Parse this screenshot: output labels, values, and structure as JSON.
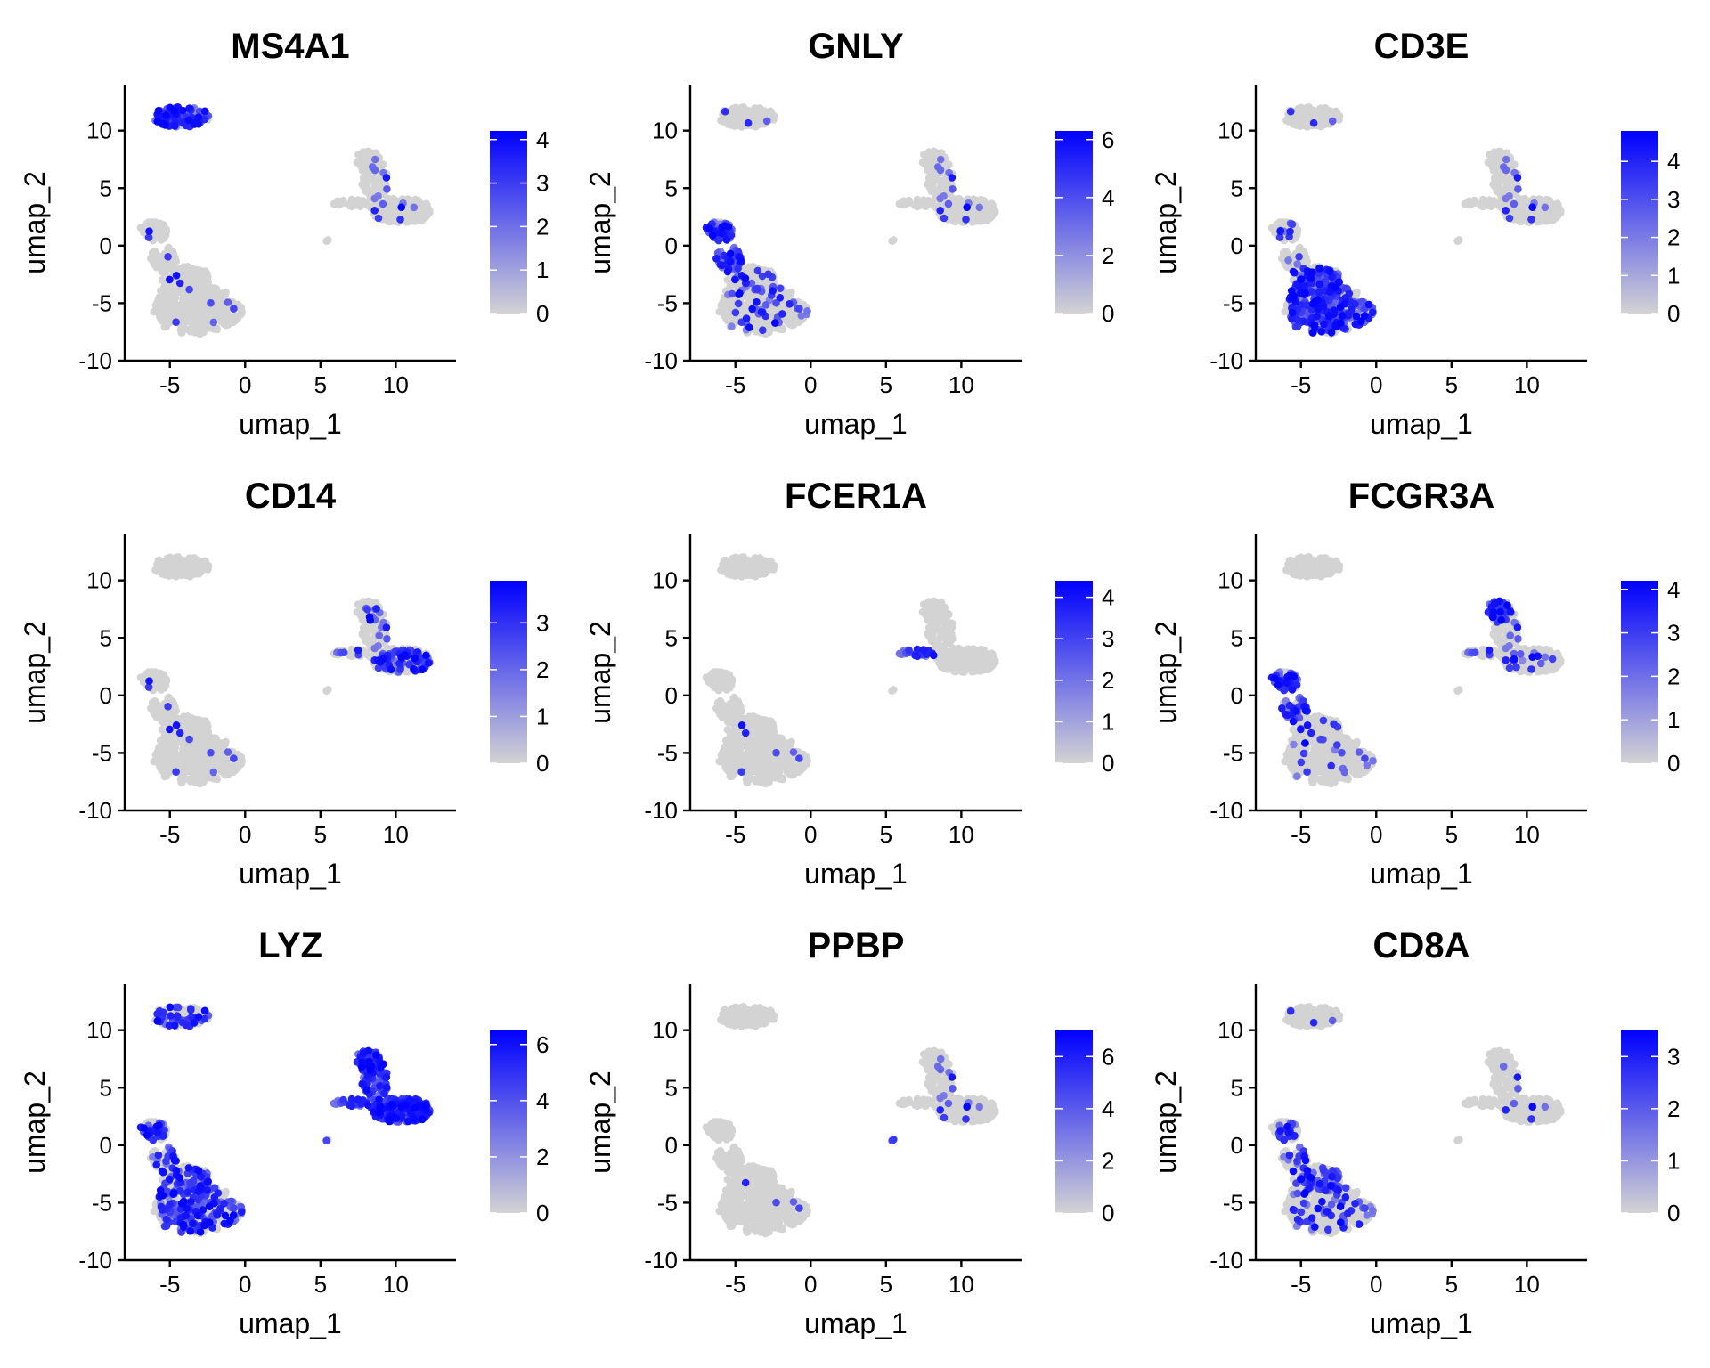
{
  "colors": {
    "low": "#d3d3d3",
    "high": "#0000ff"
  },
  "chart_data": [
    {
      "type": "scatter",
      "title": "MS4A1",
      "xlabel": "umap_1",
      "ylabel": "umap_2",
      "xlim": [
        -8,
        14
      ],
      "ylim": [
        -10,
        14
      ],
      "xticks": [
        {
          "v": -5,
          "label": "-5"
        },
        {
          "v": 0,
          "label": "0"
        },
        {
          "v": 5,
          "label": "5"
        },
        {
          "v": 10,
          "label": "10"
        }
      ],
      "yticks": [
        {
          "v": -10,
          "label": "-10"
        },
        {
          "v": -5,
          "label": "-5"
        },
        {
          "v": 0,
          "label": "0"
        },
        {
          "v": 5,
          "label": "5"
        },
        {
          "v": 10,
          "label": "10"
        }
      ],
      "colorbar": {
        "min": 0,
        "max": 4.2,
        "ticks": [
          {
            "v": 0,
            "label": "0"
          },
          {
            "v": 1,
            "label": "1"
          },
          {
            "v": 2,
            "label": "2"
          },
          {
            "v": 3,
            "label": "3"
          },
          {
            "v": 4,
            "label": "4"
          }
        ]
      },
      "expression": {
        "b": 0.88,
        "t": 0.03,
        "nk": 0.03,
        "mono": 0.04,
        "island": 0,
        "grid": 0
      }
    },
    {
      "type": "scatter",
      "title": "GNLY",
      "xlabel": "umap_1",
      "ylabel": "umap_2",
      "xlim": [
        -8,
        14
      ],
      "ylim": [
        -10,
        14
      ],
      "xticks": [
        {
          "v": -5,
          "label": "-5"
        },
        {
          "v": 0,
          "label": "0"
        },
        {
          "v": 5,
          "label": "5"
        },
        {
          "v": 10,
          "label": "10"
        }
      ],
      "yticks": [
        {
          "v": -10,
          "label": "-10"
        },
        {
          "v": -5,
          "label": "-5"
        },
        {
          "v": 0,
          "label": "0"
        },
        {
          "v": 5,
          "label": "5"
        },
        {
          "v": 10,
          "label": "10"
        }
      ],
      "colorbar": {
        "min": 0,
        "max": 6.3,
        "ticks": [
          {
            "v": 0,
            "label": "0"
          },
          {
            "v": 2,
            "label": "2"
          },
          {
            "v": 4,
            "label": "4"
          },
          {
            "v": 6,
            "label": "6"
          }
        ]
      },
      "expression": {
        "b": 0.03,
        "t": 0.12,
        "nk": 0.9,
        "mono": 0.04,
        "island": 0,
        "grid": 0
      }
    },
    {
      "type": "scatter",
      "title": "CD3E",
      "xlabel": "umap_1",
      "ylabel": "umap_2",
      "xlim": [
        -8,
        14
      ],
      "ylim": [
        -10,
        14
      ],
      "xticks": [
        {
          "v": -5,
          "label": "-5"
        },
        {
          "v": 0,
          "label": "0"
        },
        {
          "v": 5,
          "label": "5"
        },
        {
          "v": 10,
          "label": "10"
        }
      ],
      "yticks": [
        {
          "v": -10,
          "label": "-10"
        },
        {
          "v": -5,
          "label": "-5"
        },
        {
          "v": 0,
          "label": "0"
        },
        {
          "v": 5,
          "label": "5"
        },
        {
          "v": 10,
          "label": "10"
        }
      ],
      "colorbar": {
        "min": 0,
        "max": 4.8,
        "ticks": [
          {
            "v": 0,
            "label": "0"
          },
          {
            "v": 1,
            "label": "1"
          },
          {
            "v": 2,
            "label": "2"
          },
          {
            "v": 3,
            "label": "3"
          },
          {
            "v": 4,
            "label": "4"
          }
        ]
      },
      "expression": {
        "b": 0.03,
        "t": 0.6,
        "nk": 0.12,
        "mono": 0.04,
        "island": 0,
        "grid": 0
      }
    },
    {
      "type": "scatter",
      "title": "CD14",
      "xlabel": "umap_1",
      "ylabel": "umap_2",
      "xlim": [
        -8,
        14
      ],
      "ylim": [
        -10,
        14
      ],
      "xticks": [
        {
          "v": -5,
          "label": "-5"
        },
        {
          "v": 0,
          "label": "0"
        },
        {
          "v": 5,
          "label": "5"
        },
        {
          "v": 10,
          "label": "10"
        }
      ],
      "yticks": [
        {
          "v": -10,
          "label": "-10"
        },
        {
          "v": -5,
          "label": "-5"
        },
        {
          "v": 0,
          "label": "0"
        },
        {
          "v": 5,
          "label": "5"
        },
        {
          "v": 10,
          "label": "10"
        }
      ],
      "colorbar": {
        "min": 0,
        "max": 3.9,
        "ticks": [
          {
            "v": 0,
            "label": "0"
          },
          {
            "v": 1,
            "label": "1"
          },
          {
            "v": 2,
            "label": "2"
          },
          {
            "v": 3,
            "label": "3"
          }
        ]
      },
      "expression": {
        "b": 0,
        "t": 0.03,
        "nk": 0.03,
        "mono": 0.12,
        "cd14": 0.78,
        "island": 0,
        "grid": 0
      }
    },
    {
      "type": "scatter",
      "title": "FCER1A",
      "xlabel": "umap_1",
      "ylabel": "umap_2",
      "xlim": [
        -8,
        14
      ],
      "ylim": [
        -10,
        14
      ],
      "xticks": [
        {
          "v": -5,
          "label": "-5"
        },
        {
          "v": 0,
          "label": "0"
        },
        {
          "v": 5,
          "label": "5"
        },
        {
          "v": 10,
          "label": "10"
        }
      ],
      "yticks": [
        {
          "v": -10,
          "label": "-10"
        },
        {
          "v": -5,
          "label": "-5"
        },
        {
          "v": 0,
          "label": "0"
        },
        {
          "v": 5,
          "label": "5"
        },
        {
          "v": 10,
          "label": "10"
        }
      ],
      "colorbar": {
        "min": 0,
        "max": 4.4,
        "ticks": [
          {
            "v": 0,
            "label": "0"
          },
          {
            "v": 1,
            "label": "1"
          },
          {
            "v": 2,
            "label": "2"
          },
          {
            "v": 3,
            "label": "3"
          },
          {
            "v": 4,
            "label": "4"
          }
        ]
      },
      "expression": {
        "b": 0,
        "t": 0.02,
        "nk": 0,
        "mono": 0,
        "bridge": 0.85,
        "island": 0,
        "grid": 0
      }
    },
    {
      "type": "scatter",
      "title": "FCGR3A",
      "xlabel": "umap_1",
      "ylabel": "umap_2",
      "xlim": [
        -8,
        14
      ],
      "ylim": [
        -10,
        14
      ],
      "xticks": [
        {
          "v": -5,
          "label": "-5"
        },
        {
          "v": 0,
          "label": "0"
        },
        {
          "v": 5,
          "label": "5"
        },
        {
          "v": 10,
          "label": "10"
        }
      ],
      "yticks": [
        {
          "v": -10,
          "label": "-10"
        },
        {
          "v": -5,
          "label": "-5"
        },
        {
          "v": 0,
          "label": "0"
        },
        {
          "v": 5,
          "label": "5"
        },
        {
          "v": 10,
          "label": "10"
        }
      ],
      "colorbar": {
        "min": 0,
        "max": 4.2,
        "ticks": [
          {
            "v": 0,
            "label": "0"
          },
          {
            "v": 1,
            "label": "1"
          },
          {
            "v": 2,
            "label": "2"
          },
          {
            "v": 3,
            "label": "3"
          },
          {
            "v": 4,
            "label": "4"
          }
        ]
      },
      "expression": {
        "b": 0,
        "t": 0.06,
        "nk": 0.72,
        "mono": 0.08,
        "fcgr": 0.85,
        "island": 0,
        "grid": 0
      }
    },
    {
      "type": "scatter",
      "title": "LYZ",
      "xlabel": "umap_1",
      "ylabel": "umap_2",
      "xlim": [
        -8,
        14
      ],
      "ylim": [
        -10,
        14
      ],
      "xticks": [
        {
          "v": -5,
          "label": "-5"
        },
        {
          "v": 0,
          "label": "0"
        },
        {
          "v": 5,
          "label": "5"
        },
        {
          "v": 10,
          "label": "10"
        }
      ],
      "yticks": [
        {
          "v": -10,
          "label": "-10"
        },
        {
          "v": -5,
          "label": "-5"
        },
        {
          "v": 0,
          "label": "0"
        },
        {
          "v": 5,
          "label": "5"
        },
        {
          "v": 10,
          "label": "10"
        }
      ],
      "colorbar": {
        "min": 0,
        "max": 6.5,
        "ticks": [
          {
            "v": 0,
            "label": "0"
          },
          {
            "v": 2,
            "label": "2"
          },
          {
            "v": 4,
            "label": "4"
          },
          {
            "v": 6,
            "label": "6"
          }
        ]
      },
      "expression": {
        "b": 0.35,
        "t": 0.4,
        "nk": 0.4,
        "mono": 0.95,
        "bridge": 0.9,
        "island": 0.6,
        "grid": 0.25
      }
    },
    {
      "type": "scatter",
      "title": "PPBP",
      "xlabel": "umap_1",
      "ylabel": "umap_2",
      "xlim": [
        -8,
        14
      ],
      "ylim": [
        -10,
        14
      ],
      "xticks": [
        {
          "v": -5,
          "label": "-5"
        },
        {
          "v": 0,
          "label": "0"
        },
        {
          "v": 5,
          "label": "5"
        },
        {
          "v": 10,
          "label": "10"
        }
      ],
      "yticks": [
        {
          "v": -10,
          "label": "-10"
        },
        {
          "v": -5,
          "label": "-5"
        },
        {
          "v": 0,
          "label": "0"
        },
        {
          "v": 5,
          "label": "5"
        },
        {
          "v": 10,
          "label": "10"
        }
      ],
      "colorbar": {
        "min": 0,
        "max": 7,
        "ticks": [
          {
            "v": 0,
            "label": "0"
          },
          {
            "v": 2,
            "label": "2"
          },
          {
            "v": 4,
            "label": "4"
          },
          {
            "v": 6,
            "label": "6"
          }
        ]
      },
      "expression": {
        "b": 0,
        "t": 0.01,
        "nk": 0,
        "mono": 0.04,
        "island": 1,
        "grid": 0
      }
    },
    {
      "type": "scatter",
      "title": "CD8A",
      "xlabel": "umap_1",
      "ylabel": "umap_2",
      "xlim": [
        -8,
        14
      ],
      "ylim": [
        -10,
        14
      ],
      "xticks": [
        {
          "v": -5,
          "label": "-5"
        },
        {
          "v": 0,
          "label": "0"
        },
        {
          "v": 5,
          "label": "5"
        },
        {
          "v": 10,
          "label": "10"
        }
      ],
      "yticks": [
        {
          "v": -10,
          "label": "-10"
        },
        {
          "v": -5,
          "label": "-5"
        },
        {
          "v": 0,
          "label": "0"
        },
        {
          "v": 5,
          "label": "5"
        },
        {
          "v": 10,
          "label": "10"
        }
      ],
      "colorbar": {
        "min": 0,
        "max": 3.5,
        "ticks": [
          {
            "v": 0,
            "label": "0"
          },
          {
            "v": 1,
            "label": "1"
          },
          {
            "v": 2,
            "label": "2"
          },
          {
            "v": 3,
            "label": "3"
          }
        ]
      },
      "expression": {
        "b": 0.03,
        "t": 0.15,
        "nk": 0.3,
        "mono": 0.02,
        "cd8": 0.85,
        "island": 0,
        "grid": 0
      }
    }
  ]
}
